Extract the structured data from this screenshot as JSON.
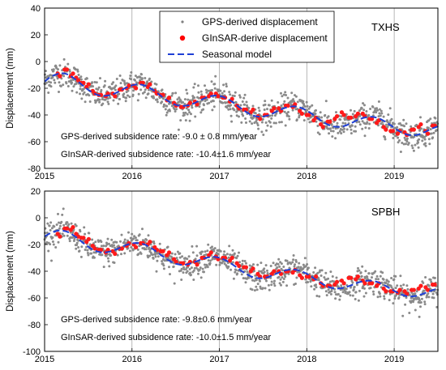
{
  "chart_data": [
    {
      "type": "scatter",
      "station": "TXHS",
      "ylabel": "Displacement (mm)",
      "xlim": [
        2015,
        2019.5
      ],
      "ylim": [
        -80,
        40
      ],
      "x_ticks": [
        "2015",
        "2016",
        "2017",
        "2018",
        "2019"
      ],
      "y_ticks": [
        "-80",
        "-60",
        "-40",
        "-20",
        "0",
        "20",
        "40"
      ],
      "vertical_lines_at": [
        2016,
        2017,
        2018,
        2019
      ],
      "legend": {
        "position": "top-center",
        "entries": [
          {
            "label": "GPS-derived displacement",
            "marker": "small-dot",
            "color": "#808080"
          },
          {
            "label": "GInSAR-derive displacement",
            "marker": "dot",
            "color": "#ff0000"
          },
          {
            "label": "Seasonal model",
            "marker": "dashed-line",
            "color": "#1f3fd6"
          }
        ]
      },
      "annotations": [
        "GPS-derived subsidence rate: -9.0 ± 0.8 mm/year",
        "GInSAR-derived subsidence rate: -10.4±1.6 mm/year"
      ],
      "model": {
        "x": [
          2015.0,
          2015.05,
          2015.1,
          2015.15,
          2015.2,
          2015.25,
          2015.3,
          2015.35,
          2015.4,
          2015.45,
          2015.5,
          2015.55,
          2015.6,
          2015.65,
          2015.7,
          2015.75,
          2015.8,
          2015.85,
          2015.9,
          2015.95,
          2016.0,
          2016.05,
          2016.1,
          2016.15,
          2016.2,
          2016.25,
          2016.3,
          2016.35,
          2016.4,
          2016.45,
          2016.5,
          2016.55,
          2016.6,
          2016.65,
          2016.7,
          2016.75,
          2016.8,
          2016.85,
          2016.9,
          2016.95,
          2017.0,
          2017.05,
          2017.1,
          2017.15,
          2017.2,
          2017.25,
          2017.3,
          2017.35,
          2017.4,
          2017.45,
          2017.5,
          2017.55,
          2017.6,
          2017.65,
          2017.7,
          2017.75,
          2017.8,
          2017.85,
          2017.9,
          2017.95,
          2018.0,
          2018.05,
          2018.1,
          2018.15,
          2018.2,
          2018.25,
          2018.3,
          2018.35,
          2018.4,
          2018.45,
          2018.5,
          2018.55,
          2018.6,
          2018.65,
          2018.7,
          2018.75,
          2018.8,
          2018.85,
          2018.9,
          2018.95,
          2019.0,
          2019.05,
          2019.1,
          2019.15,
          2019.2,
          2019.25,
          2019.3,
          2019.35,
          2019.4,
          2019.45,
          2019.5
        ],
        "y": [
          -15.0,
          -12.3,
          -10.5,
          -9.2,
          -8.7,
          -9.3,
          -10.9,
          -13.2,
          -15.9,
          -18.7,
          -21.2,
          -23.4,
          -24.9,
          -25.7,
          -25.7,
          -25.1,
          -24.0,
          -22.4,
          -20.6,
          -19.0,
          -17.8,
          -17.1,
          -17.2,
          -18.0,
          -19.6,
          -21.7,
          -24.2,
          -26.7,
          -29.1,
          -31.1,
          -32.5,
          -33.2,
          -33.2,
          -32.7,
          -31.6,
          -30.0,
          -28.4,
          -26.9,
          -25.9,
          -25.4,
          -25.7,
          -26.6,
          -28.2,
          -30.3,
          -32.7,
          -35.2,
          -37.5,
          -39.4,
          -40.7,
          -41.3,
          -41.2,
          -40.5,
          -39.2,
          -37.6,
          -36.0,
          -34.7,
          -33.8,
          -33.5,
          -33.9,
          -35.0,
          -36.7,
          -38.8,
          -41.2,
          -43.6,
          -45.8,
          -47.5,
          -48.6,
          -49.0,
          -48.7,
          -47.8,
          -46.4,
          -44.8,
          -43.3,
          -42.1,
          -41.4,
          -41.4,
          -42.0,
          -43.3,
          -45.1,
          -47.3,
          -49.6,
          -51.8,
          -53.6,
          -54.8,
          -55.3,
          -55.1,
          -54.2,
          -52.8,
          -51.2,
          -49.7,
          -48.6
        ]
      },
      "insar": {
        "x": [
          2015.15,
          2015.23,
          2015.3,
          2015.36,
          2015.42,
          2015.48,
          2015.55,
          2015.62,
          2015.7,
          2015.78,
          2015.86,
          2015.94,
          2016.02,
          2016.1,
          2016.18,
          2016.26,
          2016.33,
          2016.4,
          2016.48,
          2016.56,
          2016.64,
          2016.72,
          2016.8,
          2016.88,
          2016.96,
          2017.04,
          2017.12,
          2017.2,
          2017.28,
          2017.36,
          2017.44,
          2017.52,
          2017.6,
          2017.68,
          2017.76,
          2017.84,
          2017.92,
          2018.0,
          2018.08,
          2018.16,
          2018.24,
          2018.32,
          2018.4,
          2018.48,
          2018.56,
          2018.64,
          2018.72,
          2018.8,
          2018.88,
          2018.96,
          2019.04,
          2019.12,
          2019.2,
          2019.28,
          2019.36,
          2019.44
        ],
        "y": [
          -9,
          -6,
          -11,
          -12,
          -16,
          -19,
          -22,
          -25,
          -26,
          -24,
          -21,
          -20,
          -18,
          -16,
          -19,
          -22,
          -25,
          -29,
          -31,
          -34,
          -33,
          -30,
          -27,
          -26,
          -24,
          -27,
          -30,
          -33,
          -36,
          -38,
          -41,
          -40,
          -37,
          -35,
          -33,
          -34,
          -37,
          -40,
          -44,
          -47,
          -45,
          -43,
          -38,
          -42,
          -41,
          -39,
          -43,
          -46,
          -49,
          -52,
          -54,
          -53,
          -51,
          -49,
          -52,
          -48
        ]
      }
    },
    {
      "type": "scatter",
      "station": "SPBH",
      "ylabel": "Displacement (mm)",
      "xlim": [
        2015,
        2019.5
      ],
      "ylim": [
        -100,
        20
      ],
      "x_ticks": [
        "2015",
        "2016",
        "2017",
        "2018",
        "2019"
      ],
      "y_ticks": [
        "-100",
        "-80",
        "-60",
        "-40",
        "-20",
        "0",
        "20"
      ],
      "vertical_lines_at": [
        2016,
        2017,
        2018,
        2019
      ],
      "annotations": [
        "GPS-derived subsidence rate: -9.8±0.6 mm/year",
        "GInSAR-derived subsidence rate: -10.0±1.5 mm/year"
      ],
      "model": {
        "x": [
          2015.0,
          2015.05,
          2015.1,
          2015.15,
          2015.2,
          2015.25,
          2015.3,
          2015.35,
          2015.4,
          2015.45,
          2015.5,
          2015.55,
          2015.6,
          2015.65,
          2015.7,
          2015.75,
          2015.8,
          2015.85,
          2015.9,
          2015.95,
          2016.0,
          2016.05,
          2016.1,
          2016.15,
          2016.2,
          2016.25,
          2016.3,
          2016.35,
          2016.4,
          2016.45,
          2016.5,
          2016.55,
          2016.6,
          2016.65,
          2016.7,
          2016.75,
          2016.8,
          2016.85,
          2016.9,
          2016.95,
          2017.0,
          2017.05,
          2017.1,
          2017.15,
          2017.2,
          2017.25,
          2017.3,
          2017.35,
          2017.4,
          2017.45,
          2017.5,
          2017.55,
          2017.6,
          2017.65,
          2017.7,
          2017.75,
          2017.8,
          2017.85,
          2017.9,
          2017.95,
          2018.0,
          2018.05,
          2018.1,
          2018.15,
          2018.2,
          2018.25,
          2018.3,
          2018.35,
          2018.4,
          2018.45,
          2018.5,
          2018.55,
          2018.6,
          2018.65,
          2018.7,
          2018.75,
          2018.8,
          2018.85,
          2018.9,
          2018.95,
          2019.0,
          2019.05,
          2019.1,
          2019.15,
          2019.2,
          2019.25,
          2019.3,
          2019.35,
          2019.4,
          2019.45,
          2019.5
        ],
        "y": [
          -14.0,
          -12.0,
          -10.6,
          -9.6,
          -9.5,
          -10.2,
          -11.8,
          -14.0,
          -16.6,
          -19.3,
          -21.7,
          -23.8,
          -25.2,
          -25.9,
          -25.9,
          -25.3,
          -24.2,
          -22.8,
          -21.3,
          -20.0,
          -19.1,
          -18.8,
          -19.1,
          -20.1,
          -21.8,
          -23.9,
          -26.3,
          -28.8,
          -31.1,
          -33.0,
          -34.4,
          -35.1,
          -35.2,
          -34.6,
          -33.6,
          -32.3,
          -31.0,
          -29.9,
          -29.3,
          -29.3,
          -29.9,
          -31.1,
          -32.8,
          -34.9,
          -37.3,
          -39.7,
          -41.8,
          -43.6,
          -44.8,
          -45.3,
          -45.2,
          -44.5,
          -43.3,
          -41.9,
          -40.5,
          -39.4,
          -38.8,
          -38.7,
          -39.2,
          -40.3,
          -41.9,
          -43.9,
          -46.1,
          -48.3,
          -50.3,
          -51.8,
          -52.7,
          -53.0,
          -52.7,
          -51.9,
          -50.7,
          -49.4,
          -48.2,
          -47.4,
          -47.0,
          -47.2,
          -47.9,
          -49.2,
          -50.9,
          -52.8,
          -54.7,
          -56.5,
          -57.9,
          -58.7,
          -58.9,
          -58.5,
          -57.6,
          -56.4,
          -55.1,
          -53.9,
          -53.1
        ]
      },
      "insar": {
        "x": [
          2015.15,
          2015.23,
          2015.3,
          2015.36,
          2015.42,
          2015.48,
          2015.55,
          2015.62,
          2015.7,
          2015.78,
          2015.86,
          2015.94,
          2016.02,
          2016.1,
          2016.18,
          2016.26,
          2016.33,
          2016.4,
          2016.48,
          2016.56,
          2016.64,
          2016.72,
          2016.8,
          2016.88,
          2016.96,
          2017.04,
          2017.12,
          2017.2,
          2017.28,
          2017.36,
          2017.44,
          2017.52,
          2017.6,
          2017.68,
          2017.76,
          2017.84,
          2017.92,
          2018.0,
          2018.08,
          2018.16,
          2018.24,
          2018.32,
          2018.4,
          2018.48,
          2018.56,
          2018.64,
          2018.72,
          2018.8,
          2018.88,
          2018.96,
          2019.04,
          2019.12,
          2019.2,
          2019.28,
          2019.36,
          2019.44
        ],
        "y": [
          -12,
          -8,
          -9,
          -12,
          -15,
          -18,
          -21,
          -24,
          -26,
          -25,
          -23,
          -21,
          -20,
          -19,
          -20,
          -22,
          -25,
          -28,
          -31,
          -34,
          -35,
          -33,
          -30,
          -28,
          -29,
          -30,
          -32,
          -34,
          -37,
          -40,
          -42,
          -44,
          -42,
          -40,
          -40,
          -41,
          -43,
          -44,
          -46,
          -49,
          -51,
          -50,
          -47,
          -45,
          -46,
          -47,
          -49,
          -51,
          -53,
          -55,
          -56,
          -55,
          -54,
          -53,
          -52,
          -50
        ]
      }
    }
  ]
}
